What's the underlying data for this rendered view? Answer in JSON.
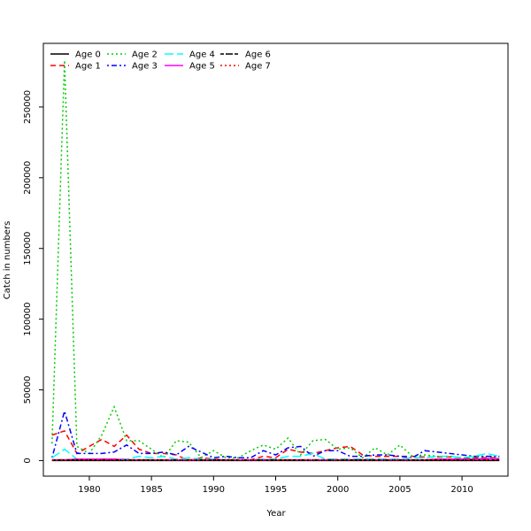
{
  "chart_data": {
    "type": "line",
    "title": "",
    "xlabel": "Year",
    "ylabel": "Catch in numbers",
    "xlim": [
      1976.3,
      2013.7
    ],
    "ylim": [
      -11000,
      295000
    ],
    "xticks": [
      1980,
      1985,
      1990,
      1995,
      2000,
      2005,
      2010
    ],
    "yticks": [
      0,
      50000,
      100000,
      150000,
      200000,
      250000
    ],
    "grid": false,
    "legend_position": "top-left",
    "x": [
      1977,
      1978,
      1979,
      1980,
      1981,
      1982,
      1983,
      1984,
      1985,
      1986,
      1987,
      1988,
      1989,
      1990,
      1991,
      1992,
      1993,
      1994,
      1995,
      1996,
      1997,
      1998,
      1999,
      2000,
      2001,
      2002,
      2003,
      2004,
      2005,
      2006,
      2007,
      2008,
      2009,
      2010,
      2011,
      2012,
      2013
    ],
    "series": [
      {
        "name": "Age 0",
        "color": "#000000",
        "dash": "solid",
        "values": [
          0,
          0,
          0,
          0,
          0,
          0,
          0,
          0,
          0,
          0,
          0,
          0,
          0,
          0,
          0,
          0,
          0,
          0,
          0,
          0,
          0,
          0,
          0,
          0,
          0,
          0,
          0,
          0,
          0,
          0,
          0,
          0,
          0,
          0,
          0,
          0,
          0
        ]
      },
      {
        "name": "Age 1",
        "color": "#ff0000",
        "dash": "dashed",
        "values": [
          18000,
          21000,
          5000,
          10000,
          15000,
          10000,
          18000,
          8000,
          5000,
          5000,
          4000,
          0,
          2000,
          1000,
          500,
          500,
          500,
          3000,
          2000,
          8000,
          6000,
          5000,
          7000,
          9000,
          10000,
          4000,
          3000,
          3000,
          3000,
          3000,
          2500,
          2500,
          2500,
          2000,
          2000,
          2000,
          2000
        ]
      },
      {
        "name": "Age 2",
        "color": "#00cd00",
        "dash": "dotted",
        "values": [
          12000,
          283000,
          10000,
          5000,
          18000,
          38000,
          14000,
          14000,
          8000,
          2000,
          14000,
          13000,
          2000,
          7000,
          2000,
          2000,
          7000,
          11000,
          8000,
          16000,
          4000,
          14000,
          15000,
          8000,
          9000,
          2000,
          9000,
          4000,
          11000,
          3000,
          4000,
          3000,
          3000,
          2000,
          2000,
          3000,
          3000
        ]
      },
      {
        "name": "Age 3",
        "color": "#0000ff",
        "dash": "dotdash",
        "values": [
          2000,
          35000,
          5000,
          5000,
          5000,
          6000,
          11000,
          5000,
          5000,
          6000,
          4000,
          10000,
          6000,
          2000,
          3000,
          2000,
          2000,
          7000,
          4000,
          9000,
          10000,
          3000,
          7000,
          7000,
          3000,
          3000,
          4000,
          4000,
          3000,
          2000,
          7000,
          6000,
          5000,
          4000,
          3000,
          3000,
          3000
        ]
      },
      {
        "name": "Age 4",
        "color": "#00ffff",
        "dash": "longdash",
        "values": [
          2000,
          8000,
          1000,
          1000,
          1000,
          1000,
          1000,
          3000,
          2000,
          3000,
          1000,
          2000,
          1000,
          1000,
          500,
          500,
          500,
          1000,
          1000,
          3000,
          3000,
          5000,
          1000,
          1000,
          1000,
          1000,
          1000,
          1000,
          1000,
          2000,
          2000,
          3000,
          3000,
          2000,
          3000,
          5000,
          3000
        ]
      },
      {
        "name": "Age 5",
        "color": "#ff00ff",
        "dash": "solid",
        "values": [
          500,
          500,
          1000,
          1000,
          1000,
          1000,
          500,
          500,
          500,
          500,
          500,
          500,
          500,
          500,
          500,
          500,
          500,
          500,
          500,
          500,
          500,
          500,
          500,
          500,
          500,
          500,
          500,
          500,
          500,
          500,
          500,
          1000,
          1000,
          1000,
          1000,
          1500,
          1500
        ]
      },
      {
        "name": "Age 6",
        "color": "#000000",
        "dash": "twodash",
        "values": [
          500,
          500,
          500,
          500,
          500,
          500,
          500,
          500,
          500,
          500,
          500,
          500,
          500,
          500,
          500,
          500,
          500,
          500,
          500,
          500,
          500,
          500,
          500,
          500,
          500,
          500,
          500,
          500,
          500,
          500,
          500,
          500,
          500,
          500,
          500,
          500,
          500
        ]
      },
      {
        "name": "Age 7",
        "color": "#ff0000",
        "dash": "dotted",
        "values": [
          500,
          500,
          500,
          500,
          500,
          500,
          500,
          500,
          500,
          500,
          500,
          500,
          500,
          500,
          500,
          500,
          500,
          500,
          500,
          500,
          500,
          500,
          500,
          500,
          500,
          500,
          500,
          500,
          500,
          500,
          500,
          500,
          500,
          500,
          500,
          500,
          500
        ]
      }
    ]
  }
}
